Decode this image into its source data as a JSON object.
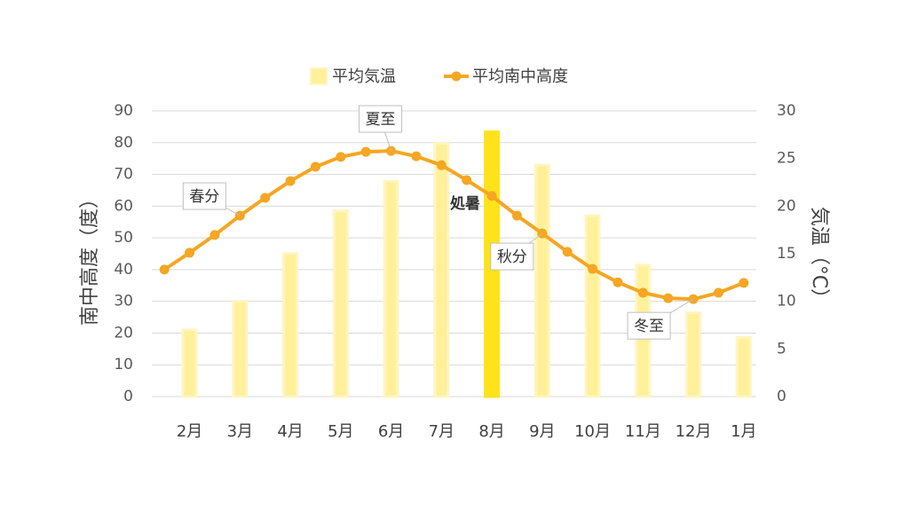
{
  "chart_data": {
    "type": "bar+line",
    "categories": [
      null,
      "2月",
      null,
      "3月",
      null,
      "4月",
      null,
      "5月",
      null,
      "6月",
      null,
      "7月",
      null,
      "8月",
      null,
      "9月",
      null,
      "10月",
      null,
      "11月",
      null,
      "12月",
      null,
      "1月"
    ],
    "series": [
      {
        "name": "平均気温",
        "type": "bar",
        "axis": "y2",
        "color": "#fff09a",
        "colors": [
          null,
          "#fff09a",
          null,
          "#fff09a",
          null,
          "#fff09a",
          null,
          "#fff09a",
          null,
          "#fff09a",
          null,
          "#fff09a",
          null,
          "#ffe31a",
          null,
          "#fff09a",
          null,
          "#fff09a",
          null,
          "#fff09a",
          null,
          "#fff09a",
          null,
          "#fff09a"
        ],
        "values": [
          null,
          7,
          null,
          10,
          null,
          15,
          null,
          19.5,
          null,
          22.6,
          null,
          26.6,
          null,
          27.8,
          null,
          24.3,
          null,
          19,
          null,
          13.8,
          null,
          8.8,
          null,
          6.2
        ]
      },
      {
        "name": "平均南中高度",
        "type": "line",
        "axis": "y",
        "color": "#f5a623",
        "values": [
          40,
          45.3,
          50.9,
          57,
          62.6,
          67.9,
          72.4,
          75.5,
          77.1,
          77.4,
          75.7,
          72.9,
          68.2,
          63.2,
          57,
          51.4,
          45.6,
          40.2,
          36,
          32.7,
          31,
          30.7,
          32.7,
          35.8
        ]
      }
    ],
    "ylabel": "南中高度（度）",
    "y2label": "気温（°C）",
    "ylim": [
      0,
      90
    ],
    "yticks": [
      0,
      10,
      20,
      30,
      40,
      50,
      60,
      70,
      80,
      90
    ],
    "y2lim": [
      0,
      30
    ],
    "y2ticks": [
      0,
      5,
      10,
      15,
      20,
      25,
      30
    ],
    "grid": true,
    "legend": "top",
    "annotations": [
      {
        "text": "春分",
        "index": 3,
        "box": true
      },
      {
        "text": "夏至",
        "index": 9,
        "box": true
      },
      {
        "text": "処暑",
        "index": 13,
        "box": false
      },
      {
        "text": "秋分",
        "index": 15,
        "box": true
      },
      {
        "text": "冬至",
        "index": 21,
        "box": true
      }
    ]
  }
}
